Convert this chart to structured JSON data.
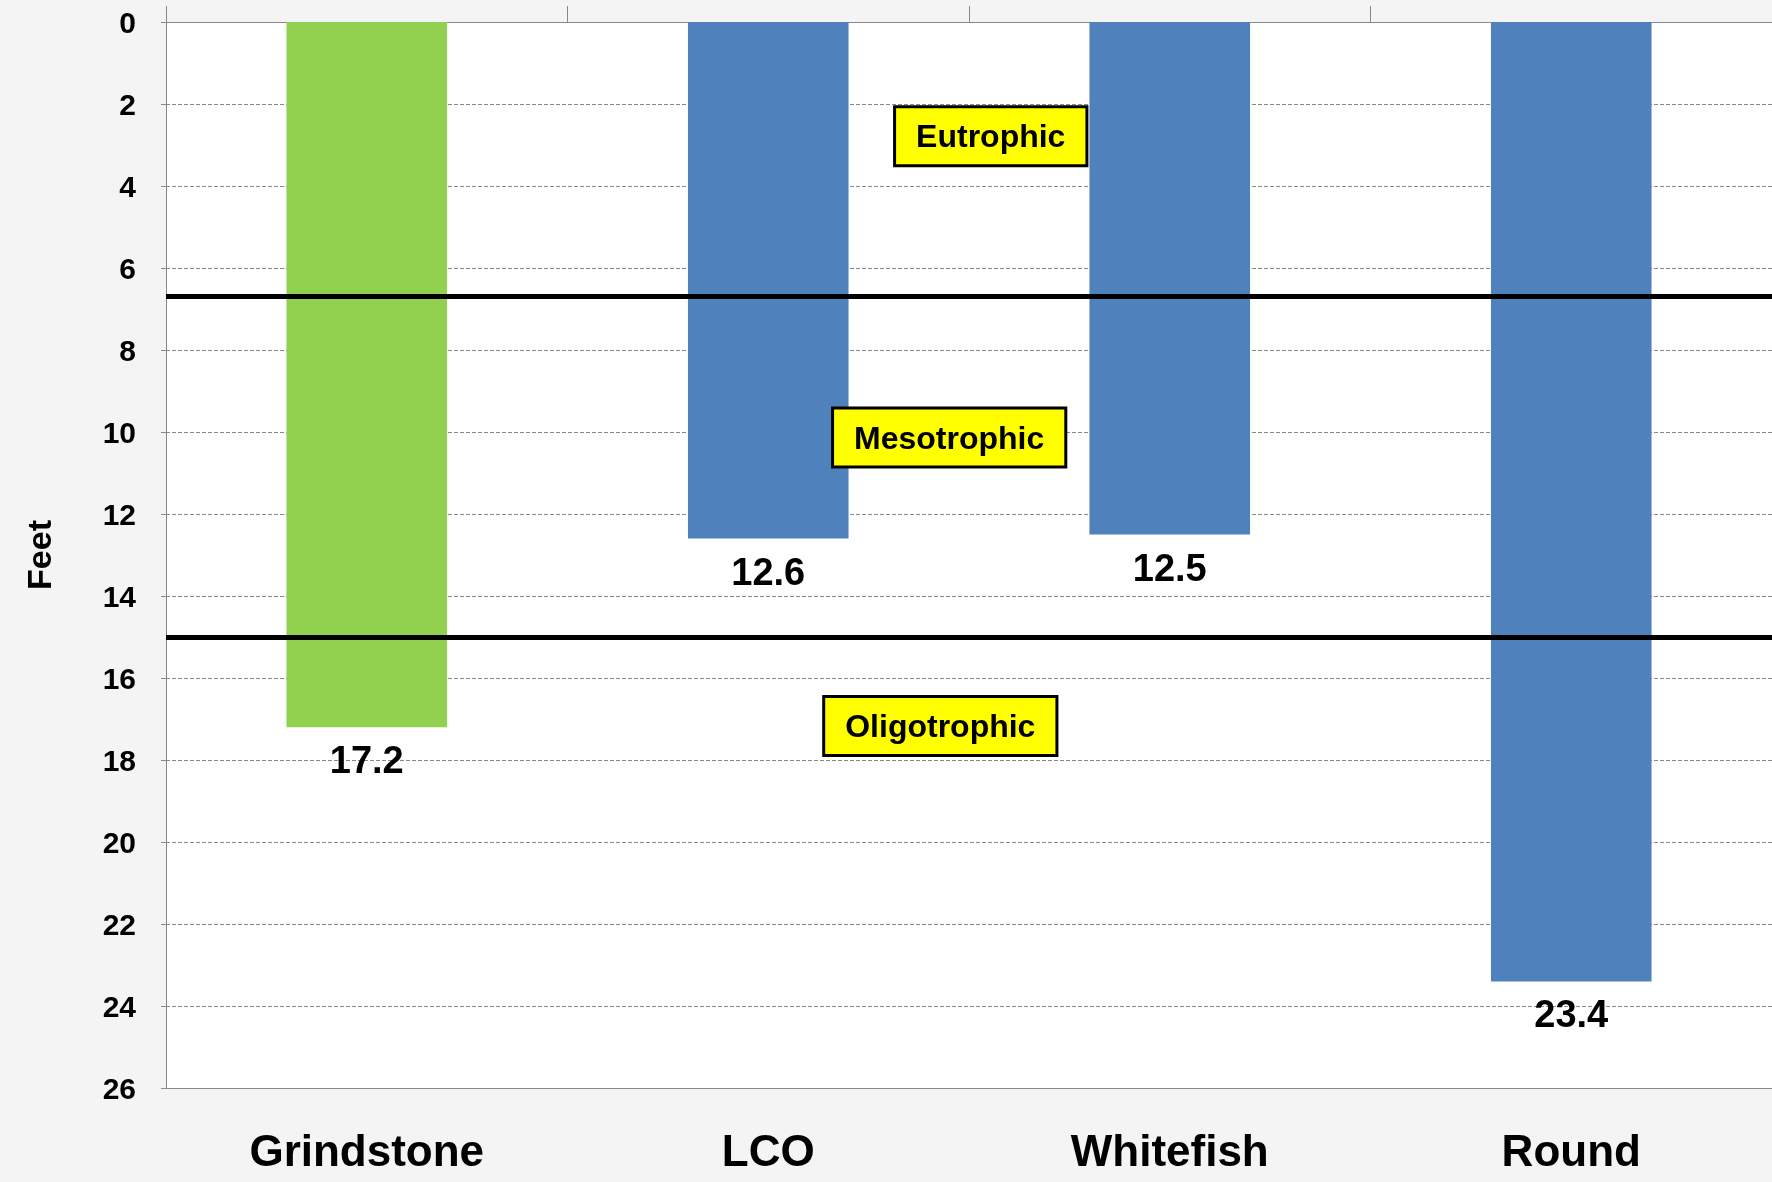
{
  "chart_data": {
    "type": "bar",
    "ylabel": "Feet",
    "categories": [
      "Grindstone",
      "LCO",
      "Whitefish",
      "Round"
    ],
    "values": [
      17.2,
      12.6,
      12.5,
      23.4
    ],
    "colors": [
      "#92d050",
      "#4f81bd",
      "#4f81bd",
      "#4f81bd"
    ],
    "ylim": [
      26,
      0
    ],
    "yticks": [
      0,
      2,
      4,
      6,
      8,
      10,
      12,
      14,
      16,
      18,
      20,
      22,
      24,
      26
    ],
    "grid": "y",
    "data_labels": true,
    "ref_lines": [
      {
        "axis": "y",
        "value": 6.7,
        "color": "#000000"
      },
      {
        "axis": "y",
        "value": 15,
        "color": "#000000"
      }
    ],
    "annotations": [
      "Eutrophic",
      "Mesotrophic",
      "Oligotrophic"
    ]
  }
}
